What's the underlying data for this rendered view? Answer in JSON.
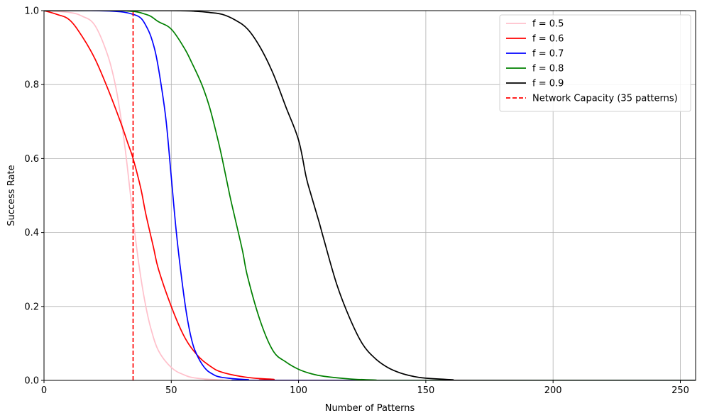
{
  "chart_data": {
    "type": "line",
    "xlabel": "Number of Patterns",
    "ylabel": "Success Rate",
    "xlim": [
      0,
      256
    ],
    "ylim": [
      0,
      1.0
    ],
    "x_ticks": [
      0,
      50,
      100,
      150,
      200,
      250
    ],
    "x_tick_labels": [
      "0",
      "50",
      "100",
      "150",
      "200",
      "250"
    ],
    "y_ticks": [
      0,
      0.2,
      0.4,
      0.6,
      0.8,
      1.0
    ],
    "y_tick_labels": [
      "0.0",
      "0.2",
      "0.4",
      "0.6",
      "0.8",
      "1.0"
    ],
    "grid": true,
    "legend_position": "top-right",
    "series": [
      {
        "name": "f = 0.5",
        "color": "#ffc0cb",
        "style": "solid",
        "points": [
          [
            0,
            1.0
          ],
          [
            10,
            0.995
          ],
          [
            15,
            0.985
          ],
          [
            20,
            0.96
          ],
          [
            25,
            0.88
          ],
          [
            28,
            0.8
          ],
          [
            30,
            0.72
          ],
          [
            32,
            0.62
          ],
          [
            34,
            0.5
          ],
          [
            36,
            0.38
          ],
          [
            38,
            0.28
          ],
          [
            40,
            0.2
          ],
          [
            42,
            0.14
          ],
          [
            45,
            0.08
          ],
          [
            50,
            0.035
          ],
          [
            55,
            0.015
          ],
          [
            60,
            0.006
          ],
          [
            70,
            0.001
          ],
          [
            80,
            0.0
          ],
          [
            256,
            0.0
          ]
        ]
      },
      {
        "name": "f = 0.6",
        "color": "#ff0000",
        "style": "solid",
        "points": [
          [
            0,
            1.0
          ],
          [
            5,
            0.99
          ],
          [
            10,
            0.975
          ],
          [
            15,
            0.93
          ],
          [
            20,
            0.87
          ],
          [
            25,
            0.79
          ],
          [
            30,
            0.7
          ],
          [
            33,
            0.64
          ],
          [
            35,
            0.6
          ],
          [
            38,
            0.52
          ],
          [
            40,
            0.45
          ],
          [
            43,
            0.36
          ],
          [
            45,
            0.3
          ],
          [
            50,
            0.2
          ],
          [
            55,
            0.12
          ],
          [
            60,
            0.07
          ],
          [
            65,
            0.04
          ],
          [
            70,
            0.022
          ],
          [
            80,
            0.008
          ],
          [
            90,
            0.003
          ],
          [
            100,
            0.0
          ],
          [
            256,
            0.0
          ]
        ]
      },
      {
        "name": "f = 0.7",
        "color": "#0000ff",
        "style": "solid",
        "points": [
          [
            0,
            1.0
          ],
          [
            20,
            1.0
          ],
          [
            30,
            0.997
          ],
          [
            35,
            0.99
          ],
          [
            38,
            0.98
          ],
          [
            40,
            0.96
          ],
          [
            42,
            0.93
          ],
          [
            44,
            0.88
          ],
          [
            46,
            0.8
          ],
          [
            48,
            0.7
          ],
          [
            50,
            0.55
          ],
          [
            52,
            0.4
          ],
          [
            54,
            0.28
          ],
          [
            56,
            0.18
          ],
          [
            58,
            0.11
          ],
          [
            60,
            0.07
          ],
          [
            63,
            0.035
          ],
          [
            66,
            0.018
          ],
          [
            70,
            0.008
          ],
          [
            80,
            0.002
          ],
          [
            90,
            0.0
          ],
          [
            256,
            0.0
          ]
        ]
      },
      {
        "name": "f = 0.8",
        "color": "#008000",
        "style": "solid",
        "points": [
          [
            0,
            1.0
          ],
          [
            30,
            1.0
          ],
          [
            40,
            0.99
          ],
          [
            45,
            0.97
          ],
          [
            50,
            0.95
          ],
          [
            55,
            0.9
          ],
          [
            58,
            0.86
          ],
          [
            62,
            0.8
          ],
          [
            65,
            0.74
          ],
          [
            68,
            0.66
          ],
          [
            70,
            0.6
          ],
          [
            73,
            0.5
          ],
          [
            75,
            0.44
          ],
          [
            78,
            0.35
          ],
          [
            80,
            0.28
          ],
          [
            85,
            0.16
          ],
          [
            90,
            0.08
          ],
          [
            95,
            0.05
          ],
          [
            100,
            0.03
          ],
          [
            105,
            0.018
          ],
          [
            110,
            0.011
          ],
          [
            120,
            0.004
          ],
          [
            130,
            0.001
          ],
          [
            140,
            0.0
          ],
          [
            256,
            0.0
          ]
        ]
      },
      {
        "name": "f = 0.9",
        "color": "#000000",
        "style": "solid",
        "points": [
          [
            0,
            1.0
          ],
          [
            50,
            1.0
          ],
          [
            60,
            0.998
          ],
          [
            65,
            0.995
          ],
          [
            70,
            0.99
          ],
          [
            75,
            0.975
          ],
          [
            80,
            0.95
          ],
          [
            85,
            0.9
          ],
          [
            90,
            0.83
          ],
          [
            95,
            0.74
          ],
          [
            100,
            0.65
          ],
          [
            103,
            0.55
          ],
          [
            105,
            0.5
          ],
          [
            108,
            0.43
          ],
          [
            110,
            0.38
          ],
          [
            115,
            0.26
          ],
          [
            120,
            0.17
          ],
          [
            125,
            0.1
          ],
          [
            130,
            0.06
          ],
          [
            135,
            0.035
          ],
          [
            140,
            0.02
          ],
          [
            145,
            0.011
          ],
          [
            150,
            0.006
          ],
          [
            160,
            0.002
          ],
          [
            170,
            0.0
          ],
          [
            256,
            0.0
          ]
        ]
      },
      {
        "name": "Network Capacity (35 patterns)",
        "color": "#ff0000",
        "style": "dashed",
        "points": [
          [
            35,
            0.0
          ],
          [
            35,
            1.0
          ]
        ]
      }
    ]
  }
}
